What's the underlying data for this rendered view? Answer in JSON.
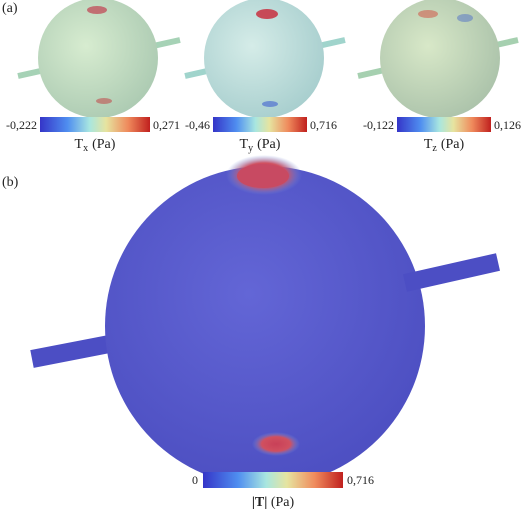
{
  "panel_a": {
    "label": "(a)",
    "plots": [
      {
        "min": "-0,222",
        "max": "0,271",
        "symbol": "T",
        "subscript": "x",
        "unit": "(Pa)"
      },
      {
        "min": "-0,46",
        "max": "0,716",
        "symbol": "T",
        "subscript": "y",
        "unit": "(Pa)"
      },
      {
        "min": "-0,122",
        "max": "0,126",
        "symbol": "T",
        "subscript": "z",
        "unit": "(Pa)"
      }
    ]
  },
  "panel_b": {
    "label": "(b)",
    "min": "0",
    "max": "0,716",
    "symbol": "|T|",
    "unit": "(Pa)"
  }
}
